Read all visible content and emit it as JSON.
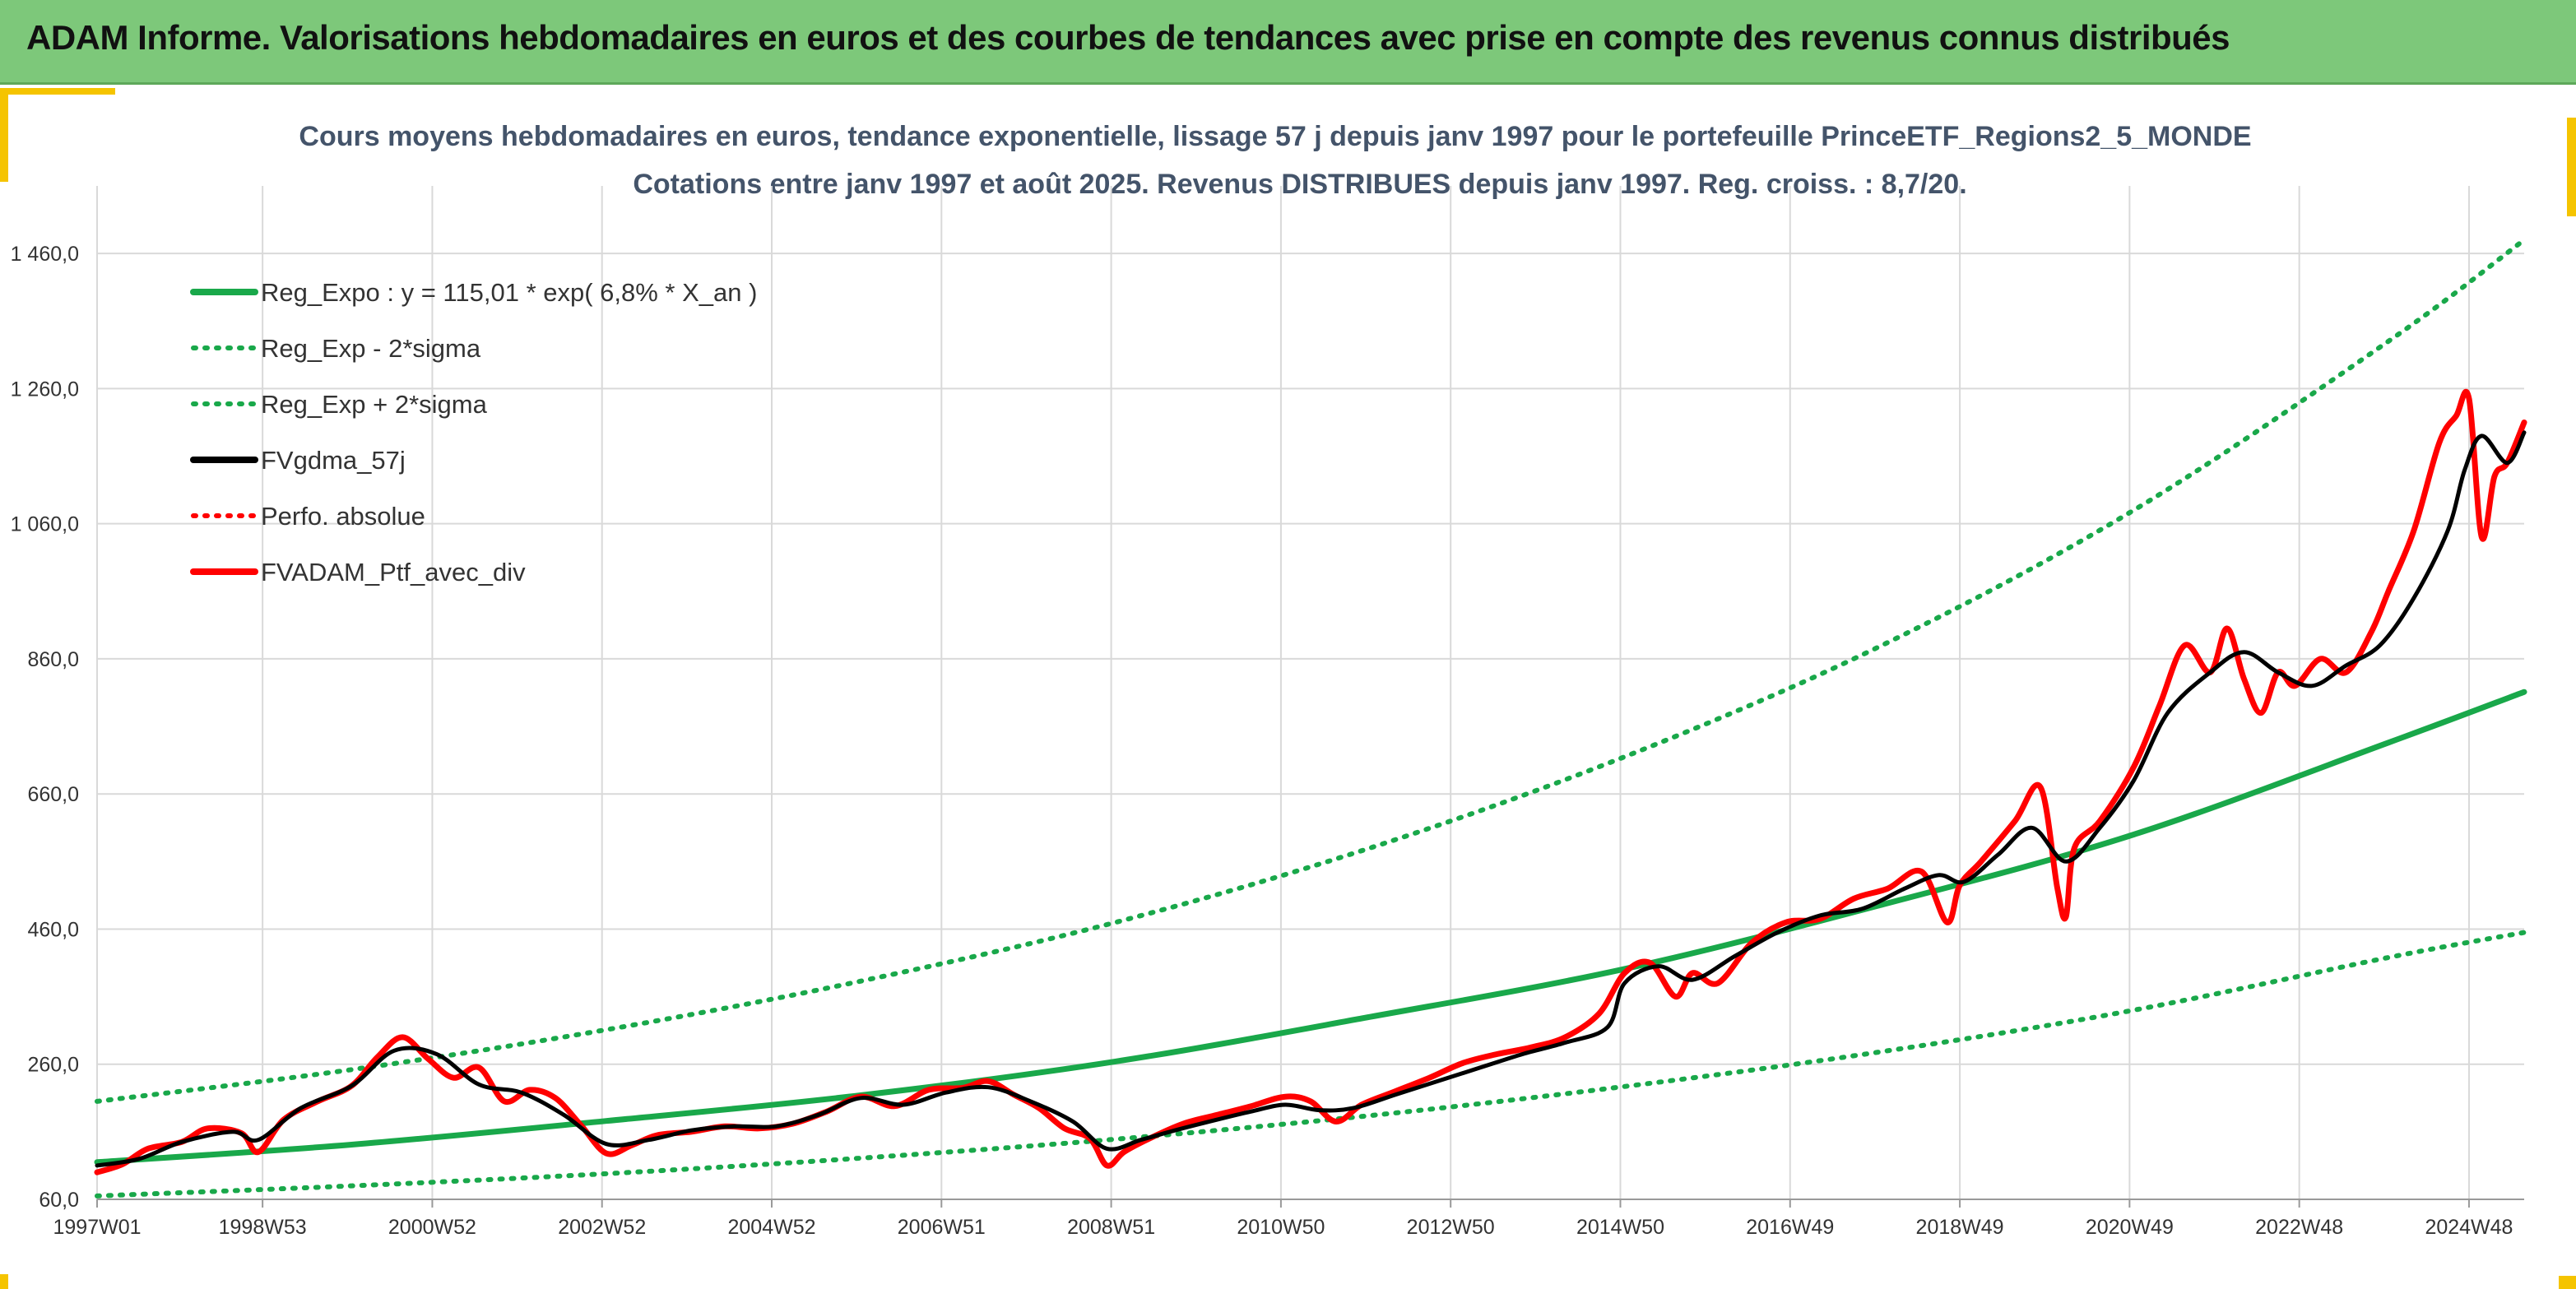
{
  "header": {
    "title": "ADAM Informe. Valorisations hebdomadaires en euros et des courbes de tendances avec prise en compte des revenus connus distribués"
  },
  "colors": {
    "banner": "#7dc87a",
    "accent_yellow": "#f5c400",
    "trend_green": "#19a84a",
    "smooth_black": "#000000",
    "price_red": "#ff0000",
    "grid": "#d9d9d9"
  },
  "chart_data": {
    "type": "line",
    "title": "Cours moyens hebdomadaires en euros, tendance exponentielle, lissage 57 j depuis janv 1997 pour le portefeuille PrinceETF_Regions2_5_MONDE",
    "subtitle": "Cotations entre janv 1997 et août 2025. Revenus DISTRIBUES depuis janv 1997. Reg. croiss. : 8,7/20.",
    "xlabel": "",
    "ylabel": "",
    "x_range": [
      1997.0,
      2025.6
    ],
    "ylim": [
      60,
      1560
    ],
    "y_ticks": [
      60,
      260,
      460,
      660,
      860,
      1060,
      1260,
      1460
    ],
    "y_tick_labels": [
      "60,0",
      "260,0",
      "460,0",
      "660,0",
      "860,0",
      "1 060,0",
      "1 260,0",
      "1 460,0"
    ],
    "x_ticks": [
      1997.0,
      1998.95,
      2000.95,
      2002.95,
      2004.95,
      2006.95,
      2008.95,
      2010.95,
      2012.95,
      2014.95,
      2016.95,
      2018.95,
      2020.95,
      2022.95,
      2024.95
    ],
    "x_tick_labels": [
      "1997W01",
      "1998W53",
      "2000W52",
      "2002W52",
      "2004W52",
      "2006W51",
      "2008W51",
      "2010W50",
      "2012W50",
      "2014W50",
      "2016W49",
      "2018W49",
      "2020W49",
      "2022W48",
      "2024W48"
    ],
    "grid": "on",
    "legend_position": "top-left",
    "legend": [
      {
        "label": "Reg_Expo : y = 115,01 * exp( 6,8% *  X_an )",
        "color": "#19a84a",
        "style": "solid"
      },
      {
        "label": "Reg_Exp - 2*sigma",
        "color": "#19a84a",
        "style": "dotted"
      },
      {
        "label": "Reg_Exp + 2*sigma",
        "color": "#19a84a",
        "style": "dotted"
      },
      {
        "label": "FVgdma_57j",
        "color": "#000000",
        "style": "solid"
      },
      {
        "label": "Perfo. absolue",
        "color": "#ff0000",
        "style": "dotted"
      },
      {
        "label": "FVADAM_Ptf_avec_div",
        "color": "#ff0000",
        "style": "solid"
      }
    ],
    "series": [
      {
        "name": "Reg_Expo : y = 115,01 * exp( 6,8% *  X_an )",
        "x": [
          1997.0,
          2000.0,
          2003.0,
          2006.0,
          2009.0,
          2012.0,
          2015.0,
          2018.0,
          2021.0,
          2024.0,
          2025.6
        ],
        "values": [
          115,
          141,
          176,
          214,
          264,
          330,
          401,
          495,
          600,
          736,
          811
        ]
      },
      {
        "name": "Reg_Exp - 2*sigma",
        "x": [
          1997.0,
          2000.0,
          2003.0,
          2006.0,
          2009.0,
          2012.0,
          2015.0,
          2018.0,
          2021.0,
          2024.0,
          2025.6
        ],
        "values": [
          65,
          80,
          98,
          121,
          149,
          184,
          227,
          278,
          340,
          418,
          455
        ]
      },
      {
        "name": "Reg_Exp + 2*sigma",
        "x": [
          1997.0,
          2000.0,
          2003.0,
          2006.0,
          2009.0,
          2012.0,
          2015.0,
          2018.0,
          2021.0,
          2024.0,
          2025.6
        ],
        "values": [
          205,
          252,
          311,
          383,
          470,
          580,
          715,
          878,
          1080,
          1330,
          1480
        ]
      },
      {
        "name": "FVgdma_57j",
        "x": [
          1997.0,
          1997.5,
          1998.0,
          1998.6,
          1998.9,
          1999.4,
          2000.0,
          2000.5,
          2001.0,
          2001.5,
          2002.0,
          2002.5,
          2003.0,
          2003.5,
          2004.0,
          2004.5,
          2005.0,
          2005.5,
          2006.0,
          2006.5,
          2007.0,
          2007.5,
          2008.0,
          2008.5,
          2008.9,
          2009.3,
          2009.7,
          2010.2,
          2010.6,
          2011.0,
          2011.4,
          2011.8,
          2012.3,
          2012.8,
          2013.3,
          2013.8,
          2014.3,
          2014.8,
          2015.0,
          2015.4,
          2015.8,
          2016.3,
          2016.8,
          2017.3,
          2017.8,
          2018.3,
          2018.7,
          2019.0,
          2019.4,
          2019.8,
          2020.2,
          2020.6,
          2021.0,
          2021.4,
          2021.9,
          2022.3,
          2022.7,
          2023.1,
          2023.5,
          2023.9,
          2024.3,
          2024.7,
          2024.9,
          2025.1,
          2025.4,
          2025.6
        ],
        "values": [
          110,
          120,
          145,
          160,
          148,
          195,
          228,
          280,
          275,
          230,
          218,
          185,
          142,
          148,
          162,
          168,
          168,
          185,
          210,
          200,
          218,
          226,
          205,
          175,
          135,
          148,
          162,
          178,
          190,
          200,
          192,
          195,
          215,
          235,
          255,
          275,
          292,
          315,
          380,
          405,
          385,
          420,
          455,
          480,
          490,
          520,
          540,
          530,
          570,
          610,
          560,
          610,
          680,
          780,
          840,
          870,
          840,
          820,
          850,
          880,
          950,
          1050,
          1140,
          1190,
          1150,
          1195
        ]
      },
      {
        "name": "FVADAM_Ptf_avec_div",
        "x": [
          1997.0,
          1997.3,
          1997.6,
          1998.0,
          1998.3,
          1998.7,
          1998.9,
          1999.2,
          1999.6,
          2000.0,
          2000.3,
          2000.6,
          2000.9,
          2001.2,
          2001.5,
          2001.8,
          2002.1,
          2002.4,
          2002.7,
          2003.0,
          2003.3,
          2003.6,
          2004.0,
          2004.4,
          2004.8,
          2005.2,
          2005.6,
          2006.0,
          2006.4,
          2006.8,
          2007.2,
          2007.5,
          2007.8,
          2008.1,
          2008.4,
          2008.7,
          2008.9,
          2009.1,
          2009.4,
          2009.8,
          2010.2,
          2010.6,
          2011.0,
          2011.3,
          2011.6,
          2011.9,
          2012.3,
          2012.7,
          2013.1,
          2013.5,
          2013.9,
          2014.3,
          2014.7,
          2015.0,
          2015.3,
          2015.6,
          2015.8,
          2016.1,
          2016.5,
          2016.9,
          2017.3,
          2017.7,
          2018.1,
          2018.5,
          2018.8,
          2018.95,
          2019.2,
          2019.6,
          2019.9,
          2020.1,
          2020.2,
          2020.3,
          2020.6,
          2021.0,
          2021.3,
          2021.6,
          2021.9,
          2022.1,
          2022.3,
          2022.5,
          2022.7,
          2022.9,
          2023.2,
          2023.5,
          2023.8,
          2024.0,
          2024.3,
          2024.6,
          2024.8,
          2024.95,
          2025.1,
          2025.25,
          2025.4,
          2025.6
        ],
        "values": [
          100,
          112,
          135,
          145,
          165,
          158,
          130,
          178,
          205,
          228,
          270,
          300,
          268,
          240,
          255,
          205,
          222,
          210,
          170,
          128,
          140,
          155,
          160,
          168,
          165,
          172,
          190,
          212,
          198,
          222,
          225,
          235,
          215,
          195,
          165,
          150,
          110,
          130,
          150,
          172,
          185,
          198,
          212,
          205,
          175,
          200,
          220,
          240,
          262,
          275,
          285,
          300,
          335,
          395,
          410,
          360,
          395,
          380,
          440,
          470,
          475,
          505,
          520,
          545,
          470,
          525,
          560,
          620,
          670,
          520,
          478,
          580,
          620,
          700,
          790,
          880,
          840,
          905,
          830,
          780,
          840,
          820,
          860,
          840,
          900,
          960,
          1050,
          1180,
          1220,
          1245,
          1040,
          1130,
          1150,
          1210
        ]
      }
    ]
  }
}
